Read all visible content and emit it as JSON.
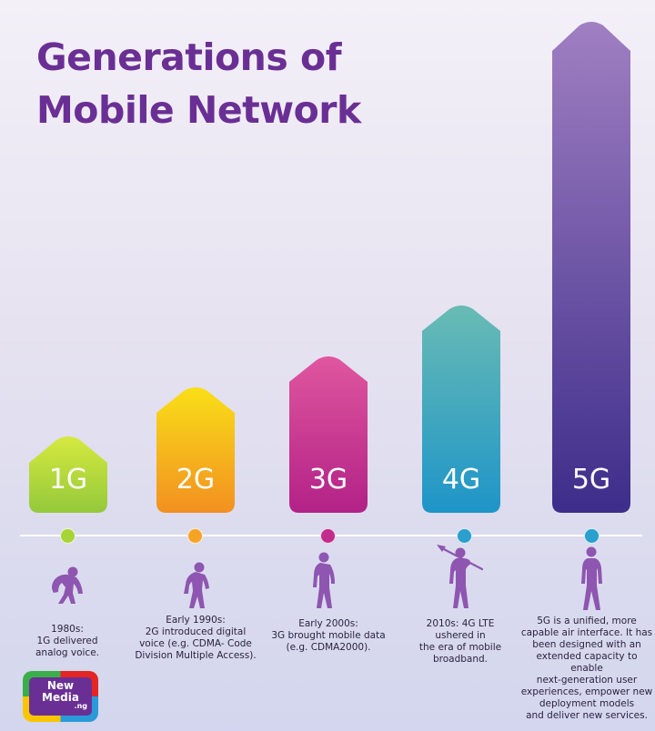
{
  "title": {
    "line1": "Generations of",
    "line2": "Mobile Network"
  },
  "generations": [
    {
      "label": "1G",
      "color_top": "#d6e93f",
      "color_bottom": "#94c93b",
      "dot_color": "#a7d437",
      "description": [
        "1980s:",
        "1G delivered",
        "analog voice."
      ]
    },
    {
      "label": "2G",
      "color_top": "#f9df18",
      "color_bottom": "#f29021",
      "dot_color": "#f4a324",
      "description": [
        "Early 1990s:",
        "2G introduced digital",
        "voice (e.g. CDMA- Code",
        "Division Multiple Access)."
      ]
    },
    {
      "label": "3G",
      "color_top": "#e0569e",
      "color_bottom": "#b22287",
      "dot_color": "#c12d8c",
      "description": [
        "Early 2000s:",
        "3G brought mobile data",
        "(e.g. CDMA2000)."
      ]
    },
    {
      "label": "4G",
      "color_top": "#69bbb4",
      "color_bottom": "#1e95c8",
      "dot_color": "#2b9fcd",
      "description": [
        "2010s: 4G LTE",
        "ushered in",
        "the era of mobile",
        "broadband."
      ]
    },
    {
      "label": "5G",
      "color_top": "#a07fc2",
      "color_bottom": "#3d2d8a",
      "dot_color": "#2b9fcd",
      "description": [
        "5G is a unified, more",
        "capable air interface. It has",
        "been designed with an",
        "extended capacity to enable",
        "next-generation user",
        "experiences, empower new",
        "deployment models",
        "and deliver new services."
      ]
    }
  ],
  "figure_color": "#8e56b0",
  "logo": {
    "line1": "New",
    "line2": "Media",
    "line3": ".ng",
    "colors": [
      "#e52521",
      "#2a9ad8",
      "#f7c600",
      "#3aae49"
    ]
  }
}
